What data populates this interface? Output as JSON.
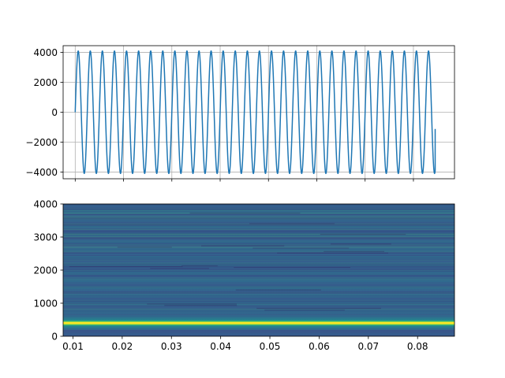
{
  "chart_data": [
    {
      "type": "line",
      "title": "",
      "xlabel": "",
      "ylabel": "",
      "xlim": [
        0.0075,
        0.0885
      ],
      "ylim": [
        -4450,
        4450
      ],
      "grid": true,
      "x_tick_labels_visible": false,
      "x_ticks": [
        0.01,
        0.02,
        0.03,
        0.04,
        0.05,
        0.06,
        0.07,
        0.08
      ],
      "y_ticks": [
        -4000,
        -2000,
        0,
        2000,
        4000
      ],
      "y_tick_labels": [
        "−4000",
        "−2000",
        "0",
        "2000",
        "4000"
      ],
      "series": [
        {
          "color": "#1f77b4",
          "x_start": 0.01,
          "x_end": 0.0845,
          "amplitude": 4096,
          "frequency_hz": 400,
          "phase": 0,
          "start_value": 0,
          "end_value": -1120
        }
      ]
    },
    {
      "type": "heatmap",
      "title": "",
      "xlabel": "",
      "ylabel": "",
      "colormap": "viridis",
      "xlim": [
        0.008,
        0.0875
      ],
      "ylim": [
        0,
        4000
      ],
      "x_ticks": [
        0.01,
        0.02,
        0.03,
        0.04,
        0.05,
        0.06,
        0.07,
        0.08
      ],
      "x_tick_labels": [
        "0.01",
        "0.02",
        "0.03",
        "0.04",
        "0.05",
        "0.06",
        "0.07",
        "0.08"
      ],
      "y_ticks": [
        0,
        1000,
        2000,
        3000,
        4000
      ],
      "y_tick_labels": [
        "0",
        "1000",
        "2000",
        "3000",
        "4000"
      ],
      "peak_frequency_hz": 400,
      "background_level": 0.32
    }
  ]
}
